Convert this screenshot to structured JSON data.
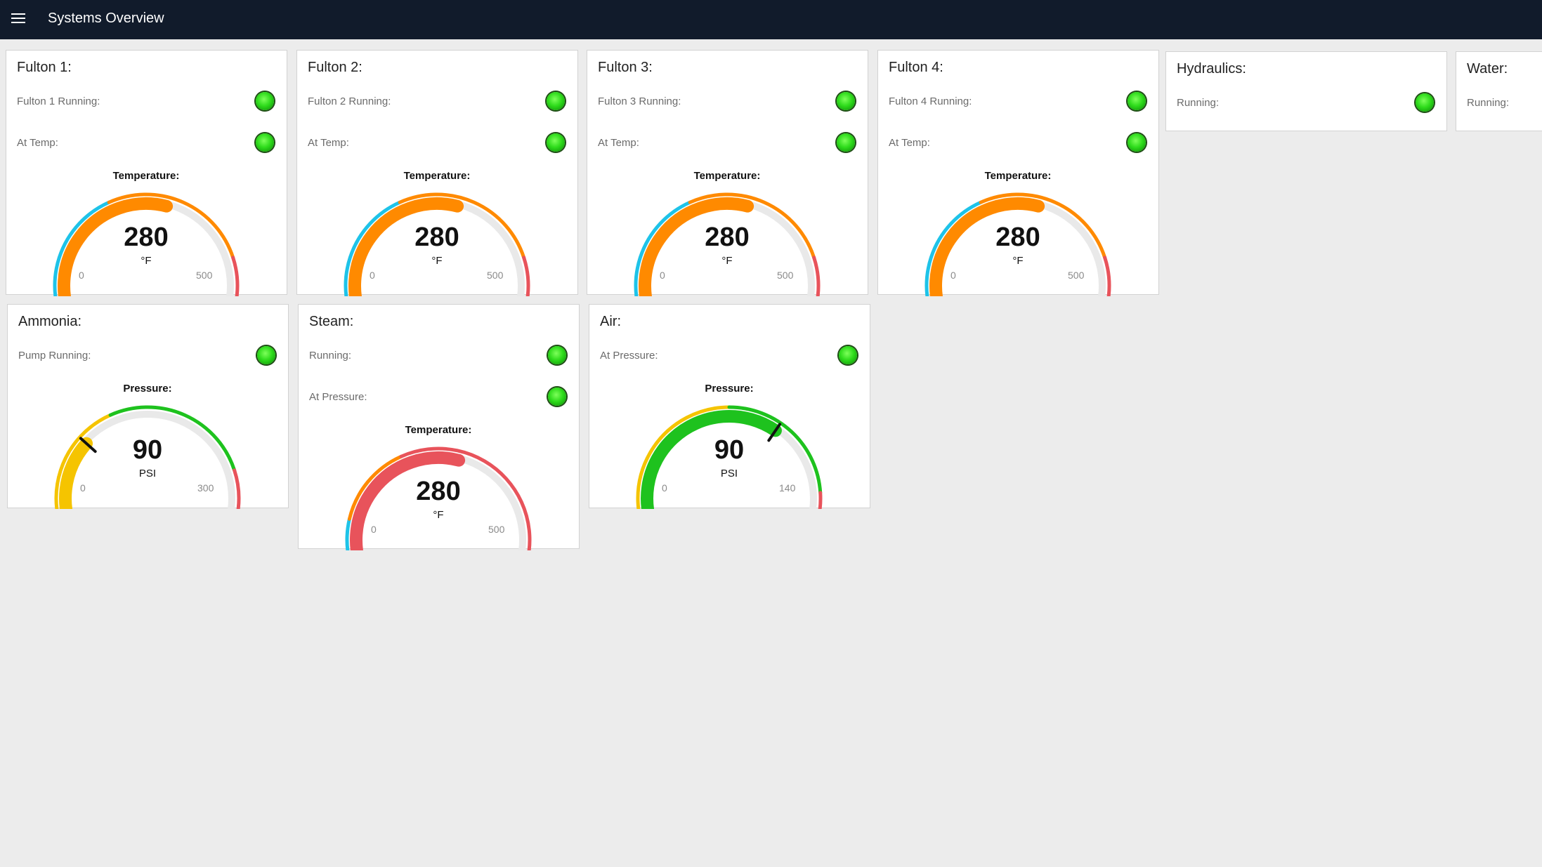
{
  "header": {
    "title": "Systems Overview",
    "menu_icon": "hamburger-menu-icon"
  },
  "status_colors": {
    "running": "#2fdc1c"
  },
  "fulton1": {
    "title": "Fulton 1:",
    "running_label": "Fulton 1 Running:",
    "at_temp_label": "At Temp:",
    "gauge": {
      "title": "Temperature:",
      "value": 280,
      "display": "280",
      "unit": "°F",
      "min": 0,
      "max": 500,
      "min_label": "0",
      "max_label": "500"
    }
  },
  "fulton2": {
    "title": "Fulton 2:",
    "running_label": "Fulton 2 Running:",
    "at_temp_label": "At Temp:",
    "gauge": {
      "title": "Temperature:",
      "value": 280,
      "display": "280",
      "unit": "°F",
      "min": 0,
      "max": 500,
      "min_label": "0",
      "max_label": "500"
    }
  },
  "fulton3": {
    "title": "Fulton 3:",
    "running_label": "Fulton 3 Running:",
    "at_temp_label": "At Temp:",
    "gauge": {
      "title": "Temperature:",
      "value": 280,
      "display": "280",
      "unit": "°F",
      "min": 0,
      "max": 500,
      "min_label": "0",
      "max_label": "500"
    }
  },
  "fulton4": {
    "title": "Fulton 4:",
    "running_label": "Fulton 4 Running:",
    "at_temp_label": "At Temp:",
    "gauge": {
      "title": "Temperature:",
      "value": 280,
      "display": "280",
      "unit": "°F",
      "min": 0,
      "max": 500,
      "min_label": "0",
      "max_label": "500"
    }
  },
  "hydraulics": {
    "title": "Hydraulics:",
    "running_label": "Running:"
  },
  "water": {
    "title": "Water:",
    "running_label": "Running:"
  },
  "ammonia": {
    "title": "Ammonia:",
    "pump_running_label": "Pump Running:",
    "gauge": {
      "title": "Pressure:",
      "value": 90,
      "display": "90",
      "unit": "PSI",
      "min": 0,
      "max": 300,
      "min_label": "0",
      "max_label": "300"
    }
  },
  "steam": {
    "title": "Steam:",
    "running_label": "Running:",
    "at_pressure_label": "At Pressure:",
    "gauge": {
      "title": "Temperature:",
      "value": 280,
      "display": "280",
      "unit": "°F",
      "min": 0,
      "max": 500,
      "min_label": "0",
      "max_label": "500"
    }
  },
  "air": {
    "title": "Air:",
    "at_pressure_label": "At Pressure:",
    "gauge": {
      "title": "Pressure:",
      "value": 90,
      "display": "90",
      "unit": "PSI",
      "min": 0,
      "max": 140,
      "min_label": "0",
      "max_label": "140"
    }
  }
}
